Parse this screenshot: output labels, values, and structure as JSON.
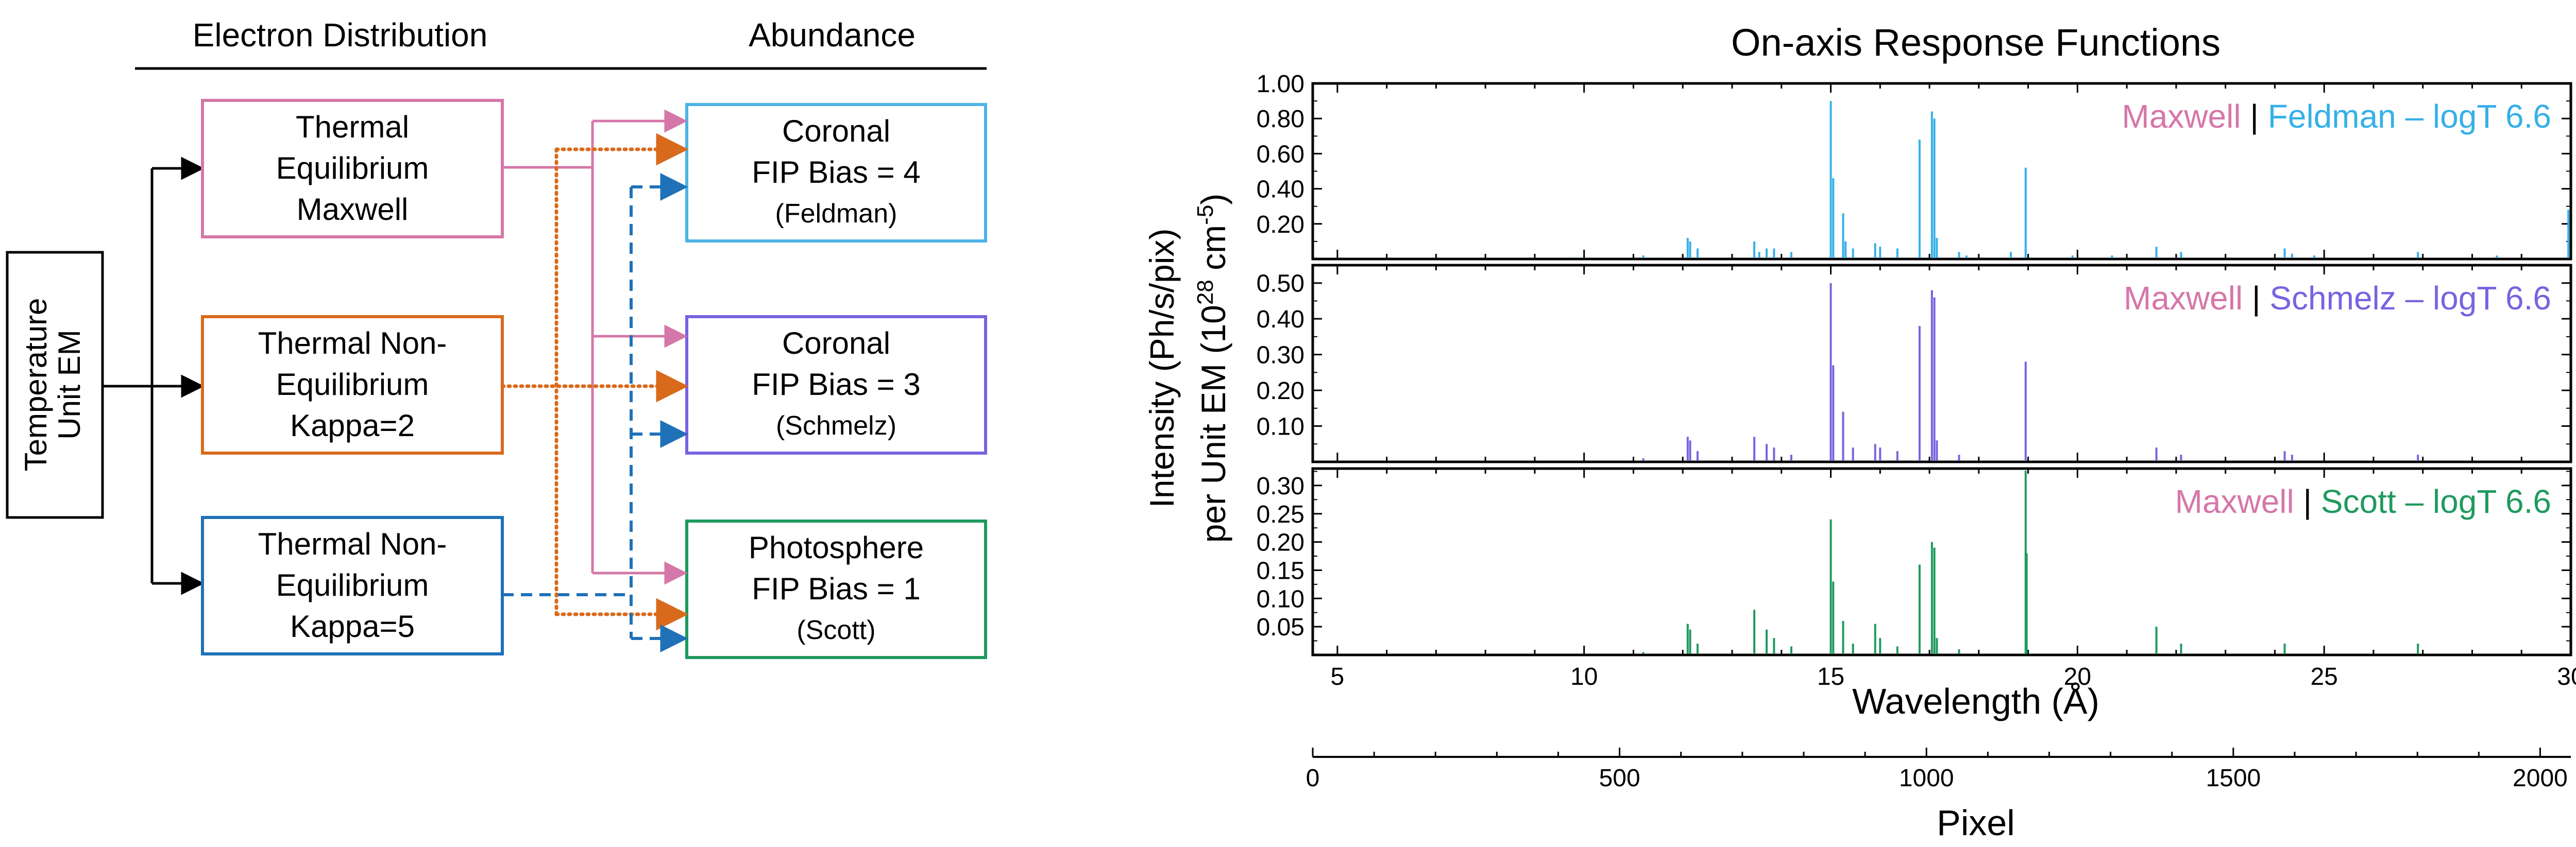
{
  "diagram": {
    "header_left": "Electron Distribution",
    "header_right": "Abundance",
    "source": [
      "Temperature",
      "Unit EM"
    ],
    "distributions": [
      {
        "id": "maxwell",
        "lines": [
          "Thermal",
          "Equilibrium",
          "Maxwell"
        ],
        "color": "#d577a8"
      },
      {
        "id": "kappa2",
        "lines": [
          "Thermal Non-",
          "Equilibrium",
          "Kappa=2"
        ],
        "color": "#d96a1c"
      },
      {
        "id": "kappa5",
        "lines": [
          "Thermal Non-",
          "Equilibrium",
          "Kappa=5"
        ],
        "color": "#1f71b8"
      }
    ],
    "abundances": [
      {
        "id": "feldman",
        "lines": [
          "Coronal",
          "FIP Bias = 4",
          "(Feldman)"
        ],
        "color": "#4db3e6"
      },
      {
        "id": "schmelz",
        "lines": [
          "Coronal",
          "FIP Bias = 3",
          "(Schmelz)"
        ],
        "color": "#7a62e0"
      },
      {
        "id": "scott",
        "lines": [
          "Photosphere",
          "FIP Bias = 1",
          "(Scott)"
        ],
        "color": "#1f9a5e"
      }
    ],
    "connector_styles": {
      "maxwell": "solid",
      "kappa2": "dotted",
      "kappa5": "dashed"
    }
  },
  "chart_data": {
    "type": "line",
    "title": "On-axis Response Functions",
    "xlabel": "Wavelength (Å)",
    "ylabel_line1": "Intensity (Ph/s/pix)",
    "ylabel_line2_prefix": "per Unit EM (10",
    "ylabel_line2_sup1": "28",
    "ylabel_line2_mid": " cm",
    "ylabel_line2_sup2": "-5",
    "ylabel_line2_suffix": ")",
    "xlim": [
      4.5,
      30
    ],
    "xticks": [
      5,
      10,
      15,
      20,
      25,
      30
    ],
    "secondary_x": {
      "label": "Pixel",
      "lim": [
        0,
        2050
      ],
      "ticks": [
        0,
        500,
        1000,
        1500,
        2000
      ]
    },
    "maxwell_label": "Maxwell",
    "maxwell_color": "#d577a8",
    "separator": "|",
    "panels": [
      {
        "name": "Feldman – logT 6.6",
        "color": "#35b0e8",
        "ylim": [
          0,
          1.0
        ],
        "yticks": [
          0.2,
          0.4,
          0.6,
          0.8,
          1.0
        ],
        "ytick_labels": [
          "0.20",
          "0.40",
          "0.60",
          "0.80",
          "1.00"
        ],
        "lines": [
          [
            9.8,
            0.01
          ],
          [
            11.2,
            0.02
          ],
          [
            11.55,
            0.01
          ],
          [
            12.1,
            0.12
          ],
          [
            12.15,
            0.1
          ],
          [
            12.3,
            0.06
          ],
          [
            13.45,
            0.1
          ],
          [
            13.55,
            0.04
          ],
          [
            13.7,
            0.06
          ],
          [
            13.85,
            0.06
          ],
          [
            14.2,
            0.04
          ],
          [
            15.0,
            0.9
          ],
          [
            15.05,
            0.46
          ],
          [
            15.25,
            0.26
          ],
          [
            15.3,
            0.1
          ],
          [
            15.45,
            0.06
          ],
          [
            15.9,
            0.09
          ],
          [
            16.0,
            0.07
          ],
          [
            16.35,
            0.06
          ],
          [
            16.8,
            0.68
          ],
          [
            17.05,
            0.84
          ],
          [
            17.1,
            0.8
          ],
          [
            17.15,
            0.12
          ],
          [
            17.6,
            0.04
          ],
          [
            17.75,
            0.02
          ],
          [
            18.65,
            0.04
          ],
          [
            18.95,
            0.52
          ],
          [
            19.9,
            0.02
          ],
          [
            20.7,
            0.02
          ],
          [
            21.6,
            0.07
          ],
          [
            22.1,
            0.04
          ],
          [
            24.2,
            0.06
          ],
          [
            24.35,
            0.03
          ],
          [
            24.8,
            0.02
          ],
          [
            26.9,
            0.04
          ],
          [
            28.5,
            0.02
          ],
          [
            29.95,
            0.28
          ]
        ]
      },
      {
        "name": "Schmelz – logT 6.6",
        "color": "#7a62e0",
        "ylim": [
          0,
          0.55
        ],
        "yticks": [
          0.1,
          0.2,
          0.3,
          0.4,
          0.5
        ],
        "ytick_labels": [
          "0.10",
          "0.20",
          "0.30",
          "0.40",
          "0.50"
        ],
        "lines": [
          [
            11.2,
            0.01
          ],
          [
            12.1,
            0.07
          ],
          [
            12.15,
            0.06
          ],
          [
            12.3,
            0.03
          ],
          [
            13.45,
            0.07
          ],
          [
            13.7,
            0.05
          ],
          [
            13.85,
            0.04
          ],
          [
            14.2,
            0.02
          ],
          [
            15.0,
            0.5
          ],
          [
            15.05,
            0.27
          ],
          [
            15.25,
            0.14
          ],
          [
            15.45,
            0.04
          ],
          [
            15.9,
            0.05
          ],
          [
            16.0,
            0.04
          ],
          [
            16.35,
            0.03
          ],
          [
            16.8,
            0.38
          ],
          [
            17.05,
            0.48
          ],
          [
            17.1,
            0.46
          ],
          [
            17.15,
            0.06
          ],
          [
            17.6,
            0.02
          ],
          [
            18.95,
            0.28
          ],
          [
            21.6,
            0.04
          ],
          [
            22.1,
            0.02
          ],
          [
            24.2,
            0.03
          ],
          [
            24.35,
            0.02
          ],
          [
            26.9,
            0.02
          ]
        ]
      },
      {
        "name": "Scott – logT 6.6",
        "color": "#1f9a5e",
        "ylim": [
          0,
          0.33
        ],
        "yticks": [
          0.05,
          0.1,
          0.15,
          0.2,
          0.25,
          0.3
        ],
        "ytick_labels": [
          "0.05",
          "0.10",
          "0.15",
          "0.20",
          "0.25",
          "0.30"
        ],
        "lines": [
          [
            11.2,
            0.005
          ],
          [
            12.1,
            0.055
          ],
          [
            12.15,
            0.045
          ],
          [
            12.3,
            0.02
          ],
          [
            13.45,
            0.08
          ],
          [
            13.7,
            0.045
          ],
          [
            13.85,
            0.03
          ],
          [
            14.2,
            0.015
          ],
          [
            15.0,
            0.24
          ],
          [
            15.05,
            0.13
          ],
          [
            15.25,
            0.06
          ],
          [
            15.45,
            0.02
          ],
          [
            15.9,
            0.055
          ],
          [
            16.0,
            0.03
          ],
          [
            16.35,
            0.015
          ],
          [
            16.8,
            0.16
          ],
          [
            17.05,
            0.2
          ],
          [
            17.1,
            0.19
          ],
          [
            17.15,
            0.03
          ],
          [
            17.6,
            0.01
          ],
          [
            18.95,
            0.33
          ],
          [
            18.97,
            0.18
          ],
          [
            21.6,
            0.05
          ],
          [
            22.1,
            0.02
          ],
          [
            24.2,
            0.02
          ],
          [
            26.9,
            0.02
          ]
        ]
      }
    ]
  }
}
